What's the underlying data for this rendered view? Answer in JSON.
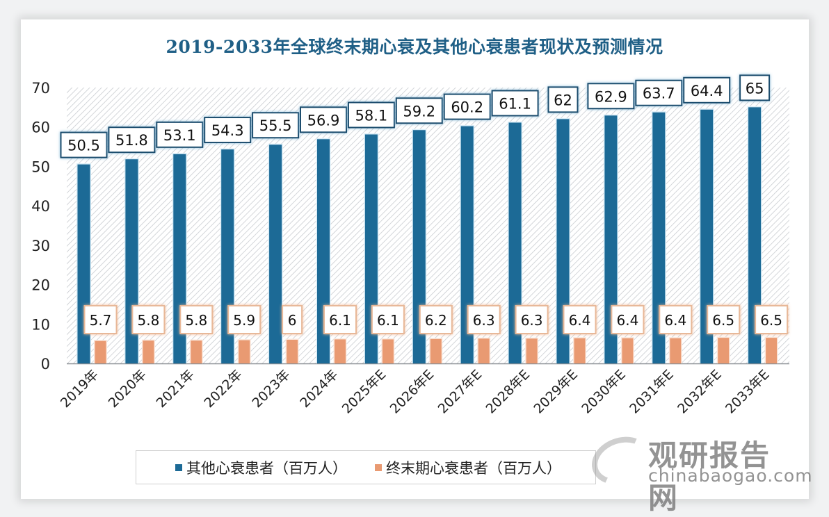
{
  "chart_data": {
    "type": "bar",
    "title": "2019-2033年全球终末期心衰及其他心衰患者现状及预测情况",
    "xlabel": "",
    "ylabel": "",
    "ylim": [
      0,
      70
    ],
    "yticks": [
      0,
      10,
      20,
      30,
      40,
      50,
      60,
      70
    ],
    "grid": false,
    "legend_position": "bottom",
    "categories": [
      "2019年",
      "2020年",
      "2021年",
      "2022年",
      "2023年",
      "2024年",
      "2025年E",
      "2026年E",
      "2027年E",
      "2028年E",
      "2029年E",
      "2030年E",
      "2031年E",
      "2032年E",
      "2033年E"
    ],
    "series": [
      {
        "name": "其他心衰患者（百万人）",
        "color": "#1c6a96",
        "values": [
          50.5,
          51.8,
          53.1,
          54.3,
          55.5,
          56.9,
          58.1,
          59.2,
          60.2,
          61.1,
          62,
          62.9,
          63.7,
          64.4,
          65
        ],
        "labels": [
          "50.5",
          "51.8",
          "53.1",
          "54.3",
          "55.5",
          "56.9",
          "58.1",
          "59.2",
          "60.2",
          "61.1",
          "62",
          "62.9",
          "63.7",
          "64.4",
          "65"
        ]
      },
      {
        "name": "终末期心衰患者（百万人）",
        "color": "#e99a72",
        "values": [
          5.7,
          5.8,
          5.8,
          5.9,
          6,
          6.1,
          6.1,
          6.2,
          6.3,
          6.3,
          6.4,
          6.4,
          6.4,
          6.5,
          6.5
        ],
        "labels": [
          "5.7",
          "5.8",
          "5.8",
          "5.9",
          "6",
          "6.1",
          "6.1",
          "6.2",
          "6.3",
          "6.3",
          "6.4",
          "6.4",
          "6.4",
          "6.5",
          "6.5"
        ]
      }
    ]
  },
  "legend": {
    "items": [
      {
        "label": "其他心衰患者（百万人）",
        "color": "#1c6a96"
      },
      {
        "label": "终末期心衰患者（百万人）",
        "color": "#e99a72"
      }
    ]
  },
  "watermark": {
    "name_cn": "观研报告网",
    "domain": "chinabaogao.com"
  }
}
